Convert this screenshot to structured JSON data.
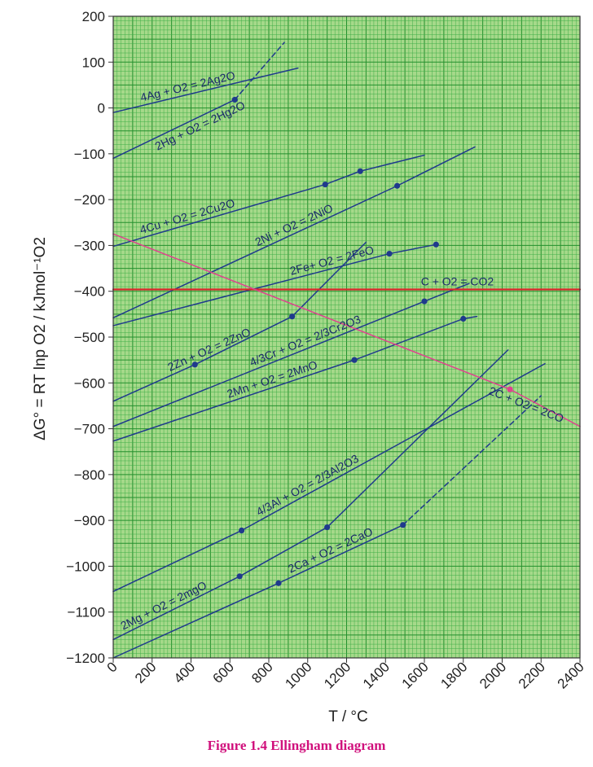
{
  "caption": "Figure 1.4 Ellingham diagram",
  "chart_data": {
    "type": "line",
    "xlabel": "T / °C",
    "ylabel": "ΔG° = RT lnp O2 / kJmol⁻¹O2",
    "xlim": [
      0,
      2400
    ],
    "ylim": [
      -1200,
      200
    ],
    "xticks": [
      0,
      200,
      400,
      600,
      800,
      1000,
      1200,
      1400,
      1600,
      1800,
      2000,
      2200,
      2400
    ],
    "yticks": [
      200,
      100,
      0,
      -100,
      -200,
      -300,
      -400,
      -500,
      -600,
      -700,
      -800,
      -900,
      -1000,
      -1100,
      -1200
    ],
    "grid": true,
    "colors": {
      "background": "#a6d98a",
      "grid_minor": "#3fae48",
      "grid_major": "#23902c",
      "reaction_line": "#1f3a8c",
      "co_line": "#e0428f",
      "co2_line": "#d8262a"
    },
    "series": [
      {
        "name": "4Ag + O2 = 2Ag2O",
        "x": [
          0,
          950
        ],
        "y": [
          -10,
          87
        ],
        "markers": []
      },
      {
        "name": "2Hg + O2 = 2Hg2O",
        "x": [
          0,
          625,
          880
        ],
        "y": [
          -110,
          18,
          143
        ],
        "markers": [
          [
            625,
            18
          ]
        ],
        "dashed_after_x": 625
      },
      {
        "name": "4Cu + O2 = 2Cu2O",
        "x": [
          0,
          1090,
          1270,
          1600
        ],
        "y": [
          -302,
          -167,
          -138,
          -103
        ],
        "markers": [
          [
            1090,
            -167
          ],
          [
            1270,
            -138
          ]
        ]
      },
      {
        "name": "2Ni + O2 = 2NiO",
        "x": [
          0,
          1460,
          1860
        ],
        "y": [
          -458,
          -170,
          -85
        ],
        "markers": [
          [
            1460,
            -170
          ]
        ]
      },
      {
        "name": "2Fe+ O2 = 2FeO",
        "x": [
          0,
          1420,
          1660
        ],
        "y": [
          -475,
          -318,
          -298
        ],
        "markers": [
          [
            1420,
            -318
          ],
          [
            1660,
            -298
          ]
        ]
      },
      {
        "name": "2Zn + O2 = 2ZnO",
        "x": [
          0,
          420,
          920,
          1300
        ],
        "y": [
          -640,
          -560,
          -455,
          -293
        ],
        "markers": [
          [
            420,
            -560
          ],
          [
            920,
            -455
          ]
        ]
      },
      {
        "name": "4/3Cr + O2 = 2/3Cr2O3",
        "x": [
          0,
          1600,
          1830
        ],
        "y": [
          -695,
          -422,
          -383
        ],
        "markers": [
          [
            1600,
            -422
          ]
        ]
      },
      {
        "name": "2Mn + O2 = 2MnO",
        "x": [
          0,
          1240,
          1800,
          1870
        ],
        "y": [
          -727,
          -550,
          -460,
          -455
        ],
        "markers": [
          [
            1240,
            -550
          ],
          [
            1800,
            -460
          ]
        ]
      },
      {
        "name": "4/3Al + O2 = 2/3Al2O3",
        "x": [
          0,
          660,
          2220
        ],
        "y": [
          -1055,
          -922,
          -558
        ],
        "markers": [
          [
            660,
            -922
          ]
        ]
      },
      {
        "name": "2Mg + O2 = 2mgO",
        "x": [
          0,
          650,
          1100,
          2030
        ],
        "y": [
          -1160,
          -1022,
          -915,
          -528
        ],
        "markers": [
          [
            650,
            -1022
          ],
          [
            1100,
            -915
          ]
        ]
      },
      {
        "name": "2Ca + O2 = 2CaO",
        "x": [
          0,
          850,
          1490,
          2200
        ],
        "y": [
          -1200,
          -1037,
          -910,
          -628
        ],
        "markers": [
          [
            850,
            -1037
          ],
          [
            1490,
            -910
          ]
        ],
        "dashed_after_x": 1490
      },
      {
        "name": "C + O2 = CO2",
        "x": [
          0,
          2400
        ],
        "y": [
          -396,
          -396
        ],
        "markers": []
      },
      {
        "name": "2C + O2 = 2CO",
        "x": [
          0,
          2040,
          2400
        ],
        "y": [
          -275,
          -614,
          -695
        ],
        "markers": [
          [
            2040,
            -614
          ]
        ]
      }
    ]
  }
}
